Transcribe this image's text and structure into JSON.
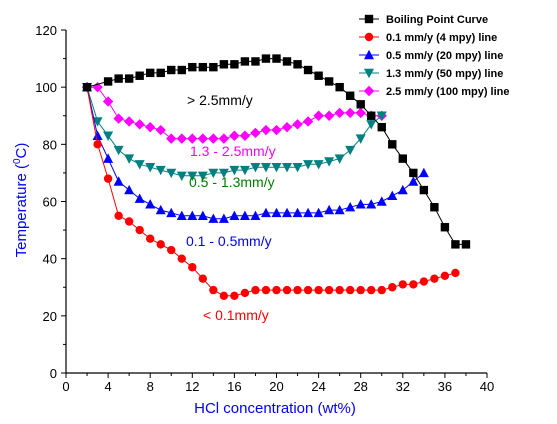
{
  "chart_data": {
    "type": "line",
    "xlabel": "HCl concentration (wt%)",
    "ylabel": {
      "prefix": "Temperature (",
      "sup": "0",
      "suffix": "C)"
    },
    "xlim": [
      0,
      40
    ],
    "ylim": [
      0,
      120
    ],
    "xticks": [
      0,
      4,
      8,
      12,
      16,
      20,
      24,
      28,
      32,
      36,
      40
    ],
    "yticks": [
      0,
      20,
      40,
      60,
      80,
      100,
      120
    ],
    "grid": false,
    "legend_position": "top-right",
    "series": [
      {
        "name": "Boiling Point Curve",
        "color": "#000000",
        "marker": "square",
        "x": [
          2,
          4,
          5,
          6,
          7,
          8,
          9,
          10,
          11,
          12,
          13,
          14,
          15,
          16,
          17,
          18,
          19,
          20,
          21,
          22,
          23,
          24,
          25,
          26,
          27,
          28,
          29,
          30,
          31,
          32,
          33,
          34,
          35,
          36,
          37,
          38
        ],
        "y": [
          100,
          102,
          103,
          103,
          104,
          105,
          105,
          106,
          106,
          107,
          107,
          107,
          108,
          108,
          109,
          109,
          110,
          110,
          109,
          108,
          106,
          104,
          102,
          100,
          97,
          94,
          90,
          86,
          80,
          75,
          70,
          64,
          58,
          51,
          45,
          45
        ]
      },
      {
        "name": "0.1 mm/y (4 mpy) line",
        "color": "#ff0000",
        "marker": "circle",
        "x": [
          2,
          3,
          4,
          5,
          6,
          7,
          8,
          9,
          10,
          11,
          12,
          13,
          14,
          15,
          16,
          17,
          18,
          19,
          20,
          21,
          22,
          23,
          24,
          25,
          26,
          27,
          28,
          29,
          30,
          31,
          32,
          33,
          34,
          35,
          36,
          37
        ],
        "y": [
          100,
          80,
          68,
          55,
          53,
          50,
          47,
          45,
          43,
          40,
          37,
          33,
          29,
          27,
          27,
          28,
          29,
          29,
          29,
          29,
          29,
          29,
          29,
          29,
          29,
          29,
          29,
          29,
          29,
          30,
          31,
          31,
          32,
          33,
          34,
          35
        ]
      },
      {
        "name": "0.5 mm/y (20 mpy) line",
        "color": "#0000ff",
        "marker": "triangle-up",
        "x": [
          2,
          3,
          4,
          5,
          6,
          7,
          8,
          9,
          10,
          11,
          12,
          13,
          14,
          15,
          16,
          17,
          18,
          19,
          20,
          21,
          22,
          23,
          24,
          25,
          26,
          27,
          28,
          29,
          30,
          31,
          32,
          33,
          34
        ],
        "y": [
          100,
          83,
          75,
          67,
          64,
          61,
          59,
          57,
          56,
          55,
          55,
          55,
          54,
          54,
          55,
          55,
          55,
          56,
          56,
          56,
          56,
          56,
          56,
          57,
          57,
          58,
          59,
          59,
          60,
          62,
          64,
          67,
          70
        ]
      },
      {
        "name": "1.3 mm/y (50 mpy) line",
        "color": "#008080",
        "marker": "triangle-down",
        "x": [
          2,
          3,
          4,
          5,
          6,
          7,
          8,
          9,
          10,
          11,
          12,
          13,
          14,
          15,
          16,
          17,
          18,
          19,
          20,
          21,
          22,
          23,
          24,
          25,
          26,
          27,
          28,
          29,
          30
        ],
        "y": [
          100,
          88,
          83,
          78,
          75,
          73,
          72,
          71,
          70,
          69,
          69,
          69,
          70,
          70,
          71,
          71,
          72,
          72,
          72,
          72,
          72,
          73,
          73,
          74,
          75,
          78,
          82,
          87,
          90
        ]
      },
      {
        "name": "2.5 mm/y (100 mpy) line",
        "color": "#ff00ff",
        "marker": "diamond",
        "x": [
          2,
          3,
          4,
          5,
          6,
          7,
          8,
          9,
          10,
          11,
          12,
          13,
          14,
          15,
          16,
          17,
          18,
          19,
          20,
          21,
          22,
          23,
          24,
          25,
          26,
          27,
          28,
          29,
          30
        ],
        "y": [
          100,
          100,
          95,
          89,
          88,
          87,
          86,
          85,
          82,
          82,
          82,
          82,
          82,
          82,
          83,
          83,
          84,
          85,
          85,
          86,
          87,
          88,
          90,
          90,
          91,
          91,
          91,
          90,
          90
        ]
      }
    ],
    "annotations": [
      {
        "text": "> 2.5mm/y",
        "color": "#000000"
      },
      {
        "text": "1.3 - 2.5mm/y",
        "color": "#ff00ff"
      },
      {
        "text": "0.5 - 1.3mm/y",
        "color": "#008000"
      },
      {
        "text": "0.1 - 0.5mm/y",
        "color": "#0000ff"
      },
      {
        "text": "< 0.1mm/y",
        "color": "#ff0000"
      }
    ],
    "axis_title_color": "#0000ff"
  }
}
